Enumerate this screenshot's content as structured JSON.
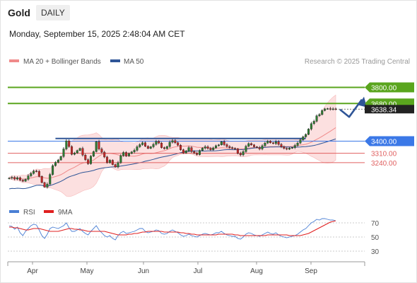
{
  "header": {
    "symbol": "Gold",
    "timeframe": "DAILY",
    "datetime": "Monday, September 15, 2025 2:48:04 AM CET"
  },
  "legend": {
    "ma20": {
      "label": "MA 20 + Bollinger Bands",
      "color": "#f08a8a"
    },
    "ma50": {
      "label": "MA 50",
      "color": "#2f5597"
    },
    "credit": "Research © 2025 Trading Central"
  },
  "rsi_legend": {
    "rsi": "RSI",
    "ma": "9MA"
  },
  "colors": {
    "resistance": "#5aa51e",
    "pivot": "#3b78e7",
    "support": "#e06060",
    "up": "#2e7d32",
    "down": "#c62828",
    "candle": "#222222",
    "price_tag": "#222222",
    "rsi": "#4a7fd4",
    "rsi_ma": "#e02020"
  },
  "chart_data": [
    {
      "type": "candlestick",
      "instrument": "Gold",
      "interval": "Daily",
      "y_range": [
        2950,
        3950
      ],
      "x_labels": [
        "Apr",
        "May",
        "Jun",
        "Jul",
        "Aug",
        "Sep"
      ],
      "current_price": "3638.34",
      "levels": [
        {
          "value": 3800.0,
          "label": "3800.00",
          "kind": "resistance"
        },
        {
          "value": 3680.0,
          "label": "3680.00",
          "kind": "resistance"
        },
        {
          "value": 3400.0,
          "label": "3400.00",
          "kind": "pivot"
        },
        {
          "value": 3310.0,
          "label": "3310.00",
          "kind": "support"
        },
        {
          "value": 3240.0,
          "label": "3240.00",
          "kind": "support"
        }
      ],
      "trendline": {
        "from": 3420,
        "to": 3420
      },
      "projection": [
        3636,
        3580,
        3710
      ],
      "closes": [
        3125,
        3130,
        3118,
        3128,
        3110,
        3102,
        3116,
        3142,
        3160,
        3178,
        3176,
        3138,
        3092,
        3058,
        3080,
        3152,
        3218,
        3242,
        3260,
        3286,
        3342,
        3402,
        3360,
        3302,
        3312,
        3330,
        3346,
        3296,
        3262,
        3232,
        3288,
        3322,
        3396,
        3342,
        3318,
        3282,
        3240,
        3258,
        3226,
        3208,
        3240,
        3292,
        3316,
        3290,
        3308,
        3320,
        3332,
        3358,
        3374,
        3388,
        3362,
        3346,
        3358,
        3376,
        3398,
        3386,
        3352,
        3344,
        3360,
        3392,
        3404,
        3388,
        3370,
        3336,
        3312,
        3328,
        3352,
        3322,
        3312,
        3300,
        3330,
        3348,
        3358,
        3346,
        3336,
        3350,
        3366,
        3372,
        3396,
        3374,
        3360,
        3352,
        3346,
        3342,
        3308,
        3298,
        3322,
        3362,
        3382,
        3372,
        3358,
        3352,
        3342,
        3366,
        3386,
        3400,
        3388,
        3382,
        3396,
        3376,
        3358,
        3346,
        3340,
        3348,
        3352,
        3368,
        3386,
        3410,
        3432,
        3450,
        3490,
        3530,
        3548,
        3588,
        3598,
        3628,
        3640,
        3642,
        3638,
        3640,
        3638
      ]
    },
    {
      "type": "line",
      "indicator": "RSI",
      "y_range": [
        20,
        80
      ],
      "y_ticks": [
        70,
        50,
        30
      ],
      "series": [
        {
          "name": "RSI",
          "values": [
            66,
            65,
            61,
            64,
            56,
            52,
            58,
            62,
            66,
            68,
            67,
            60,
            52,
            48,
            54,
            62,
            64,
            63,
            62,
            64,
            66,
            70,
            63,
            58,
            58,
            60,
            62,
            58,
            55,
            53,
            58,
            62,
            66,
            60,
            56,
            52,
            50,
            52,
            48,
            46,
            52,
            56,
            58,
            55,
            56,
            57,
            58,
            60,
            62,
            62,
            58,
            56,
            57,
            58,
            60,
            59,
            55,
            54,
            55,
            58,
            60,
            58,
            56,
            53,
            51,
            52,
            54,
            52,
            51,
            50,
            52,
            54,
            55,
            54,
            53,
            54,
            56,
            56,
            58,
            55,
            53,
            52,
            51,
            51,
            48,
            47,
            50,
            54,
            56,
            55,
            53,
            52,
            51,
            53,
            55,
            57,
            55,
            54,
            56,
            53,
            51,
            50,
            49,
            50,
            51,
            52,
            54,
            57,
            60,
            62,
            66,
            70,
            72,
            75,
            74,
            76,
            76,
            75,
            74,
            74,
            73
          ]
        },
        {
          "name": "9MA",
          "values": [
            64,
            64,
            63,
            63,
            62,
            61,
            60,
            60,
            61,
            62,
            62,
            62,
            61,
            60,
            59,
            58,
            58,
            58,
            58,
            59,
            60,
            61,
            62,
            62,
            61,
            61,
            60,
            60,
            59,
            58,
            58,
            58,
            58,
            58,
            58,
            58,
            57,
            56,
            55,
            54,
            53,
            53,
            53,
            53,
            54,
            54,
            55,
            55,
            56,
            57,
            57,
            58,
            58,
            58,
            58,
            58,
            58,
            57,
            57,
            57,
            57,
            57,
            57,
            56,
            56,
            55,
            55,
            54,
            54,
            53,
            53,
            53,
            53,
            53,
            53,
            53,
            53,
            54,
            54,
            54,
            54,
            54,
            54,
            53,
            53,
            52,
            52,
            52,
            52,
            52,
            52,
            52,
            52,
            52,
            52,
            53,
            53,
            53,
            53,
            53,
            53,
            53,
            53,
            52,
            52,
            52,
            52,
            52,
            53,
            54,
            55,
            57,
            59,
            61,
            63,
            65,
            67,
            69,
            71,
            72,
            73
          ]
        }
      ]
    }
  ]
}
